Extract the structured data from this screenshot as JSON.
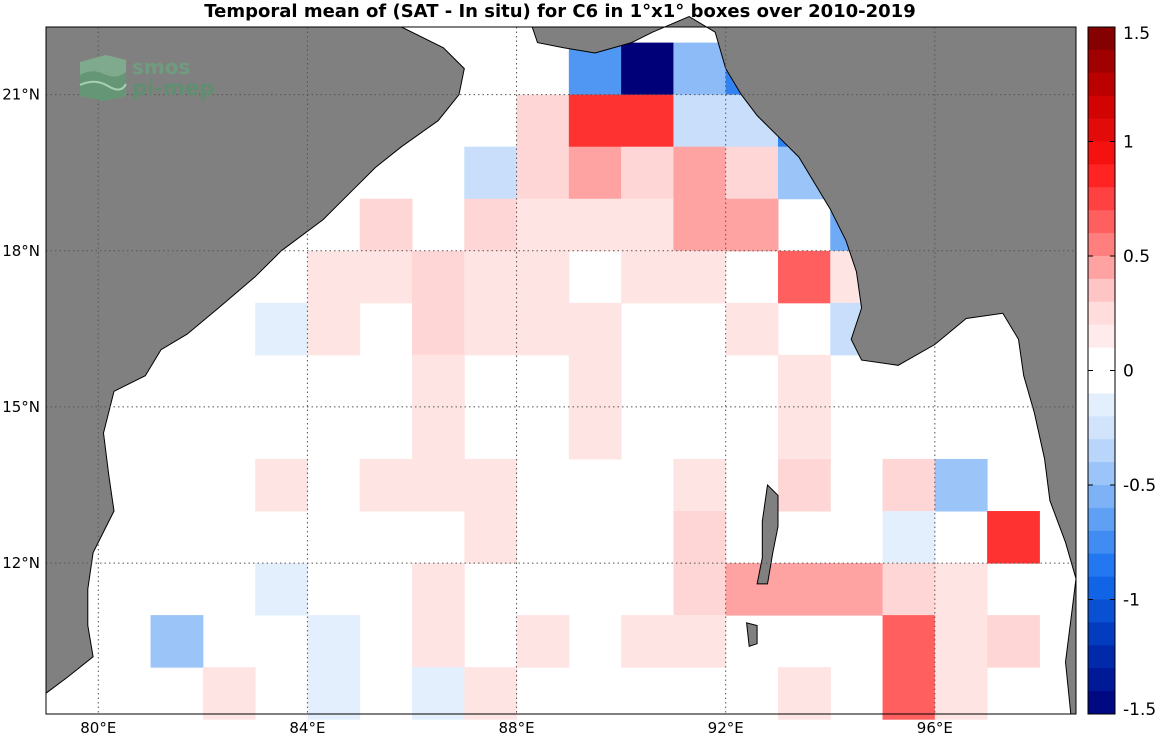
{
  "title": "Temporal mean of (SAT - In situ) for C6 in 1°x1° boxes over 2010-2019",
  "logo": {
    "line1": "smos",
    "line2": "pi-mep"
  },
  "colors": {
    "land": "#808080",
    "sea": "#ffffff",
    "grid": "#555555",
    "coast": "#000000"
  },
  "map": {
    "lon_range": [
      79,
      98.7
    ],
    "lat_range": [
      9.1,
      22.3
    ],
    "lon_ticks": [
      80,
      84,
      88,
      92,
      96
    ],
    "lon_labels": [
      "80°E",
      "84°E",
      "88°E",
      "92°E",
      "96°E"
    ],
    "lat_ticks": [
      12,
      15,
      18,
      21
    ],
    "lat_labels": [
      "12°N",
      "15°N",
      "18°N",
      "21°N"
    ]
  },
  "colorbar": {
    "min": -1.5,
    "max": 1.5,
    "ticks": [
      1.5,
      1,
      0.5,
      0,
      -0.5,
      -1,
      -1.5
    ],
    "tick_labels": [
      "1.5",
      "1",
      "0.5",
      "0",
      "-0.5",
      "-1",
      "-1.5"
    ]
  },
  "chart_data": {
    "type": "heatmap",
    "title": "Temporal mean of (SAT - In situ) for C6 in 1°x1° boxes over 2010-2019",
    "xlabel": "",
    "ylabel": "",
    "cell_size_deg": 1,
    "cells": [
      {
        "lon": 89.5,
        "lat": 21.5,
        "v": -0.7
      },
      {
        "lon": 90.5,
        "lat": 21.5,
        "v": -1.5
      },
      {
        "lon": 91.5,
        "lat": 21.5,
        "v": -0.5
      },
      {
        "lon": 92.5,
        "lat": 21.5,
        "v": -0.8
      },
      {
        "lon": 88.5,
        "lat": 20.5,
        "v": 0.3
      },
      {
        "lon": 89.5,
        "lat": 20.5,
        "v": 0.8
      },
      {
        "lon": 90.5,
        "lat": 20.5,
        "v": 0.8
      },
      {
        "lon": 91.5,
        "lat": 20.5,
        "v": -0.3
      },
      {
        "lon": 92.5,
        "lat": 20.5,
        "v": -0.3
      },
      {
        "lon": 93.5,
        "lat": 20.5,
        "v": -0.8
      },
      {
        "lon": 87.5,
        "lat": 19.5,
        "v": -0.3
      },
      {
        "lon": 88.5,
        "lat": 19.5,
        "v": 0.3
      },
      {
        "lon": 89.5,
        "lat": 19.5,
        "v": 0.45
      },
      {
        "lon": 90.5,
        "lat": 19.5,
        "v": 0.3
      },
      {
        "lon": 91.5,
        "lat": 19.5,
        "v": 0.45
      },
      {
        "lon": 92.5,
        "lat": 19.5,
        "v": 0.3
      },
      {
        "lon": 93.5,
        "lat": 19.5,
        "v": -0.45
      },
      {
        "lon": 85.5,
        "lat": 18.5,
        "v": 0.3
      },
      {
        "lon": 87.5,
        "lat": 18.5,
        "v": 0.3
      },
      {
        "lon": 88.5,
        "lat": 18.5,
        "v": 0.2
      },
      {
        "lon": 89.5,
        "lat": 18.5,
        "v": 0.2
      },
      {
        "lon": 90.5,
        "lat": 18.5,
        "v": 0.2
      },
      {
        "lon": 91.5,
        "lat": 18.5,
        "v": 0.45
      },
      {
        "lon": 92.5,
        "lat": 18.5,
        "v": 0.45
      },
      {
        "lon": 94.5,
        "lat": 18.5,
        "v": -0.6
      },
      {
        "lon": 84.5,
        "lat": 17.5,
        "v": 0.2
      },
      {
        "lon": 85.5,
        "lat": 17.5,
        "v": 0.2
      },
      {
        "lon": 86.5,
        "lat": 17.5,
        "v": 0.3
      },
      {
        "lon": 87.5,
        "lat": 17.5,
        "v": 0.2
      },
      {
        "lon": 88.5,
        "lat": 17.5,
        "v": 0.2
      },
      {
        "lon": 90.5,
        "lat": 17.5,
        "v": 0.2
      },
      {
        "lon": 91.5,
        "lat": 17.5,
        "v": 0.2
      },
      {
        "lon": 93.5,
        "lat": 17.5,
        "v": 0.65
      },
      {
        "lon": 94.5,
        "lat": 17.5,
        "v": 0.2
      },
      {
        "lon": 83.5,
        "lat": 16.5,
        "v": -0.15
      },
      {
        "lon": 84.5,
        "lat": 16.5,
        "v": 0.2
      },
      {
        "lon": 86.5,
        "lat": 16.5,
        "v": 0.3
      },
      {
        "lon": 87.5,
        "lat": 16.5,
        "v": 0.2
      },
      {
        "lon": 88.5,
        "lat": 16.5,
        "v": 0.2
      },
      {
        "lon": 89.5,
        "lat": 16.5,
        "v": 0.2
      },
      {
        "lon": 92.5,
        "lat": 16.5,
        "v": 0.2
      },
      {
        "lon": 94.5,
        "lat": 16.5,
        "v": -0.3
      },
      {
        "lon": 86.5,
        "lat": 15.5,
        "v": 0.2
      },
      {
        "lon": 89.5,
        "lat": 15.5,
        "v": 0.2
      },
      {
        "lon": 93.5,
        "lat": 15.5,
        "v": 0.2
      },
      {
        "lon": 86.5,
        "lat": 14.5,
        "v": 0.2
      },
      {
        "lon": 89.5,
        "lat": 14.5,
        "v": 0.2
      },
      {
        "lon": 93.5,
        "lat": 14.5,
        "v": 0.2
      },
      {
        "lon": 83.5,
        "lat": 13.5,
        "v": 0.2
      },
      {
        "lon": 85.5,
        "lat": 13.5,
        "v": 0.2
      },
      {
        "lon": 86.5,
        "lat": 13.5,
        "v": 0.2
      },
      {
        "lon": 87.5,
        "lat": 13.5,
        "v": 0.2
      },
      {
        "lon": 91.5,
        "lat": 13.5,
        "v": 0.2
      },
      {
        "lon": 93.5,
        "lat": 13.5,
        "v": 0.3
      },
      {
        "lon": 95.5,
        "lat": 13.5,
        "v": 0.3
      },
      {
        "lon": 96.5,
        "lat": 13.5,
        "v": -0.45
      },
      {
        "lon": 87.5,
        "lat": 12.5,
        "v": 0.2
      },
      {
        "lon": 91.5,
        "lat": 12.5,
        "v": 0.3
      },
      {
        "lon": 95.5,
        "lat": 12.5,
        "v": -0.15
      },
      {
        "lon": 97.5,
        "lat": 12.5,
        "v": 0.8
      },
      {
        "lon": 83.5,
        "lat": 11.5,
        "v": -0.15
      },
      {
        "lon": 86.5,
        "lat": 11.5,
        "v": 0.2
      },
      {
        "lon": 91.5,
        "lat": 11.5,
        "v": 0.3
      },
      {
        "lon": 92.5,
        "lat": 11.5,
        "v": 0.45
      },
      {
        "lon": 93.5,
        "lat": 11.5,
        "v": 0.45
      },
      {
        "lon": 94.5,
        "lat": 11.5,
        "v": 0.45
      },
      {
        "lon": 95.5,
        "lat": 11.5,
        "v": 0.3
      },
      {
        "lon": 96.5,
        "lat": 11.5,
        "v": 0.2
      },
      {
        "lon": 81.5,
        "lat": 10.5,
        "v": -0.45
      },
      {
        "lon": 84.5,
        "lat": 10.5,
        "v": -0.15
      },
      {
        "lon": 86.5,
        "lat": 10.5,
        "v": 0.2
      },
      {
        "lon": 88.5,
        "lat": 10.5,
        "v": 0.2
      },
      {
        "lon": 90.5,
        "lat": 10.5,
        "v": 0.2
      },
      {
        "lon": 91.5,
        "lat": 10.5,
        "v": 0.2
      },
      {
        "lon": 95.5,
        "lat": 10.5,
        "v": 0.65
      },
      {
        "lon": 96.5,
        "lat": 10.5,
        "v": 0.2
      },
      {
        "lon": 97.5,
        "lat": 10.5,
        "v": 0.3
      },
      {
        "lon": 82.5,
        "lat": 9.5,
        "v": 0.2
      },
      {
        "lon": 84.5,
        "lat": 9.5,
        "v": -0.15
      },
      {
        "lon": 86.5,
        "lat": 9.5,
        "v": -0.15
      },
      {
        "lon": 87.5,
        "lat": 9.5,
        "v": 0.2
      },
      {
        "lon": 93.5,
        "lat": 9.5,
        "v": 0.2
      },
      {
        "lon": 95.5,
        "lat": 9.5,
        "v": 0.65
      },
      {
        "lon": 96.5,
        "lat": 9.5,
        "v": 0.2
      }
    ],
    "land": {
      "india_coast": [
        [
          79,
          22.3
        ],
        [
          85.8,
          22.3
        ],
        [
          86.6,
          21.9
        ],
        [
          87.0,
          21.5
        ],
        [
          86.9,
          21.0
        ],
        [
          86.5,
          20.5
        ],
        [
          85.8,
          20.0
        ],
        [
          85.3,
          19.6
        ],
        [
          84.9,
          19.2
        ],
        [
          84.3,
          18.6
        ],
        [
          83.5,
          18.0
        ],
        [
          83.0,
          17.5
        ],
        [
          82.3,
          16.9
        ],
        [
          81.7,
          16.4
        ],
        [
          81.2,
          16.1
        ],
        [
          80.9,
          15.6
        ],
        [
          80.3,
          15.3
        ],
        [
          80.1,
          14.5
        ],
        [
          80.2,
          13.7
        ],
        [
          80.3,
          13.0
        ],
        [
          79.9,
          12.2
        ],
        [
          79.8,
          11.5
        ],
        [
          79.8,
          10.8
        ],
        [
          79.9,
          10.2
        ],
        [
          79.4,
          9.8
        ],
        [
          79.0,
          9.5
        ],
        [
          79,
          22.3
        ]
      ],
      "bangladesh_myanmar_coast": [
        [
          88.3,
          22.3
        ],
        [
          88.4,
          22.0
        ],
        [
          88.9,
          21.9
        ],
        [
          89.5,
          21.8
        ],
        [
          90.2,
          22.0
        ],
        [
          90.6,
          22.2
        ],
        [
          91.3,
          22.5
        ],
        [
          91.8,
          22.2
        ],
        [
          92.0,
          21.5
        ],
        [
          92.3,
          21.0
        ],
        [
          92.6,
          20.6
        ],
        [
          93.0,
          20.2
        ],
        [
          93.4,
          19.8
        ],
        [
          93.7,
          19.3
        ],
        [
          94.0,
          18.8
        ],
        [
          94.3,
          18.2
        ],
        [
          94.5,
          17.6
        ],
        [
          94.6,
          16.9
        ],
        [
          94.4,
          16.3
        ],
        [
          94.6,
          15.9
        ],
        [
          95.3,
          15.8
        ],
        [
          96.0,
          16.2
        ],
        [
          96.6,
          16.7
        ],
        [
          97.3,
          16.8
        ],
        [
          97.6,
          16.3
        ],
        [
          97.7,
          15.6
        ],
        [
          97.9,
          14.9
        ],
        [
          98.1,
          14.0
        ],
        [
          98.2,
          13.2
        ],
        [
          98.5,
          12.4
        ],
        [
          98.7,
          11.7
        ],
        [
          98.6,
          10.9
        ],
        [
          98.5,
          10.1
        ],
        [
          98.6,
          9.1
        ],
        [
          98.7,
          9.1
        ],
        [
          98.7,
          22.3
        ],
        [
          88.3,
          22.3
        ]
      ],
      "andaman_north": [
        [
          92.8,
          13.5
        ],
        [
          93.0,
          13.3
        ],
        [
          93.0,
          12.7
        ],
        [
          92.9,
          12.2
        ],
        [
          92.8,
          11.6
        ],
        [
          92.6,
          11.6
        ],
        [
          92.7,
          12.1
        ],
        [
          92.7,
          12.8
        ],
        [
          92.8,
          13.5
        ]
      ],
      "little_andaman": [
        [
          92.4,
          10.85
        ],
        [
          92.6,
          10.8
        ],
        [
          92.6,
          10.45
        ],
        [
          92.45,
          10.4
        ],
        [
          92.4,
          10.85
        ]
      ]
    }
  }
}
